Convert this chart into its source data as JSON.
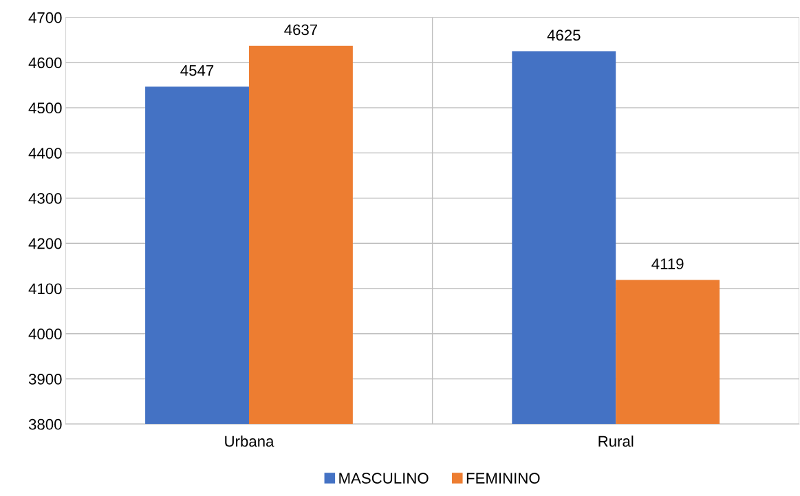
{
  "chart_data": {
    "type": "bar",
    "categories": [
      "Urbana",
      "Rural"
    ],
    "series": [
      {
        "name": "MASCULINO",
        "color": "#4472c4",
        "values": [
          4547,
          4625
        ]
      },
      {
        "name": "FEMININO",
        "color": "#ed7d31",
        "values": [
          4637,
          4119
        ]
      }
    ],
    "ylim": [
      3800,
      4700
    ],
    "yticks": [
      3800,
      3900,
      4000,
      4100,
      4200,
      4300,
      4400,
      4500,
      4600,
      4700
    ],
    "grid": true,
    "legend": "bottom",
    "data_labels": true
  }
}
